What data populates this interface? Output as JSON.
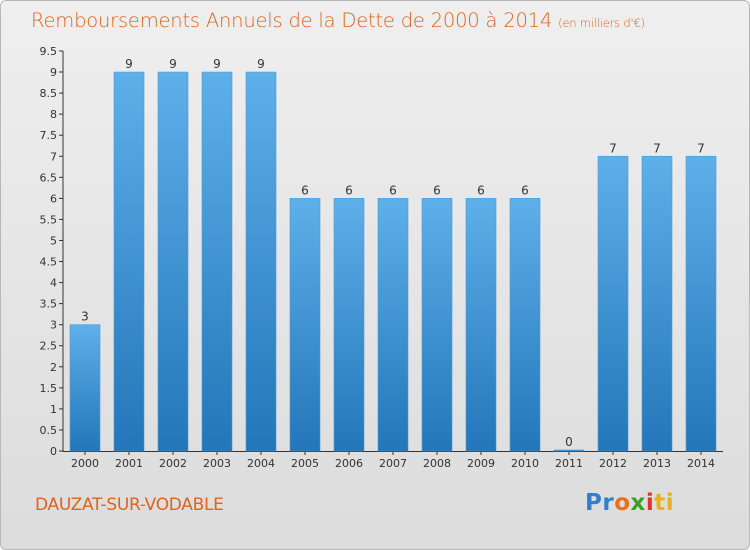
{
  "title": "Remboursements Annuels de la Dette de 2000 à 2014",
  "unit_note": "(en milliers d'€)",
  "city": "DAUZAT-SUR-VODABLE",
  "logo": {
    "text": "Proxiti",
    "letters": [
      "Pr",
      "o",
      "x",
      "i",
      "ti"
    ]
  },
  "colors": {
    "accent": "#e0631a",
    "bar_light": "#5eb0ea",
    "bar_dark": "#2376b8"
  },
  "chart_data": {
    "type": "bar",
    "title": "Remboursements Annuels de la Dette de 2000 à 2014",
    "xlabel": "",
    "ylabel": "",
    "categories": [
      "2000",
      "2001",
      "2002",
      "2003",
      "2004",
      "2005",
      "2006",
      "2007",
      "2008",
      "2009",
      "2010",
      "2011",
      "2012",
      "2013",
      "2014"
    ],
    "values": [
      3,
      9,
      9,
      9,
      9,
      6,
      6,
      6,
      6,
      6,
      6,
      0,
      7,
      7,
      7
    ],
    "ylim": [
      0,
      9.5
    ],
    "yticks": [
      "0",
      "0.5",
      "1",
      "1.5",
      "2",
      "2.5",
      "3",
      "3.5",
      "4",
      "4.5",
      "5",
      "5.5",
      "6",
      "6.5",
      "7",
      "7.5",
      "8",
      "8.5",
      "9",
      "9.5"
    ],
    "grid": false
  }
}
